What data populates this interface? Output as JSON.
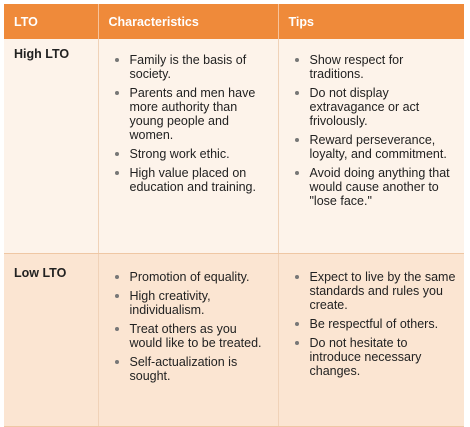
{
  "headers": [
    "LTO",
    "Characteristics",
    "Tips"
  ],
  "rows": [
    {
      "label": "High LTO",
      "characteristics": [
        "Family is the basis of society.",
        "Parents and men have more authority than young people and women.",
        "Strong work ethic.",
        "High value placed on education and training."
      ],
      "tips": [
        "Show respect for traditions.",
        "Do not display extravagance or act frivolously.",
        "Reward perseverance, loyalty, and commitment.",
        "Avoid doing anything that would cause another to \"lose face.\""
      ]
    },
    {
      "label": "Low LTO",
      "characteristics": [
        "Promotion of equality.",
        "High creativity, individualism.",
        "Treat others as you would like to be treated.",
        "Self-actualization is sought."
      ],
      "tips": [
        "Expect to live by the same standards and rules you create.",
        "Be respectful of others.",
        "Do not hesitate to introduce necessary changes."
      ]
    }
  ],
  "colors": {
    "header_bg": "#ef8a3a",
    "header_text": "#ffffff",
    "row_high_bg": "#fdf3ea",
    "row_low_bg": "#fbe5d2",
    "bullet": "#777777"
  }
}
